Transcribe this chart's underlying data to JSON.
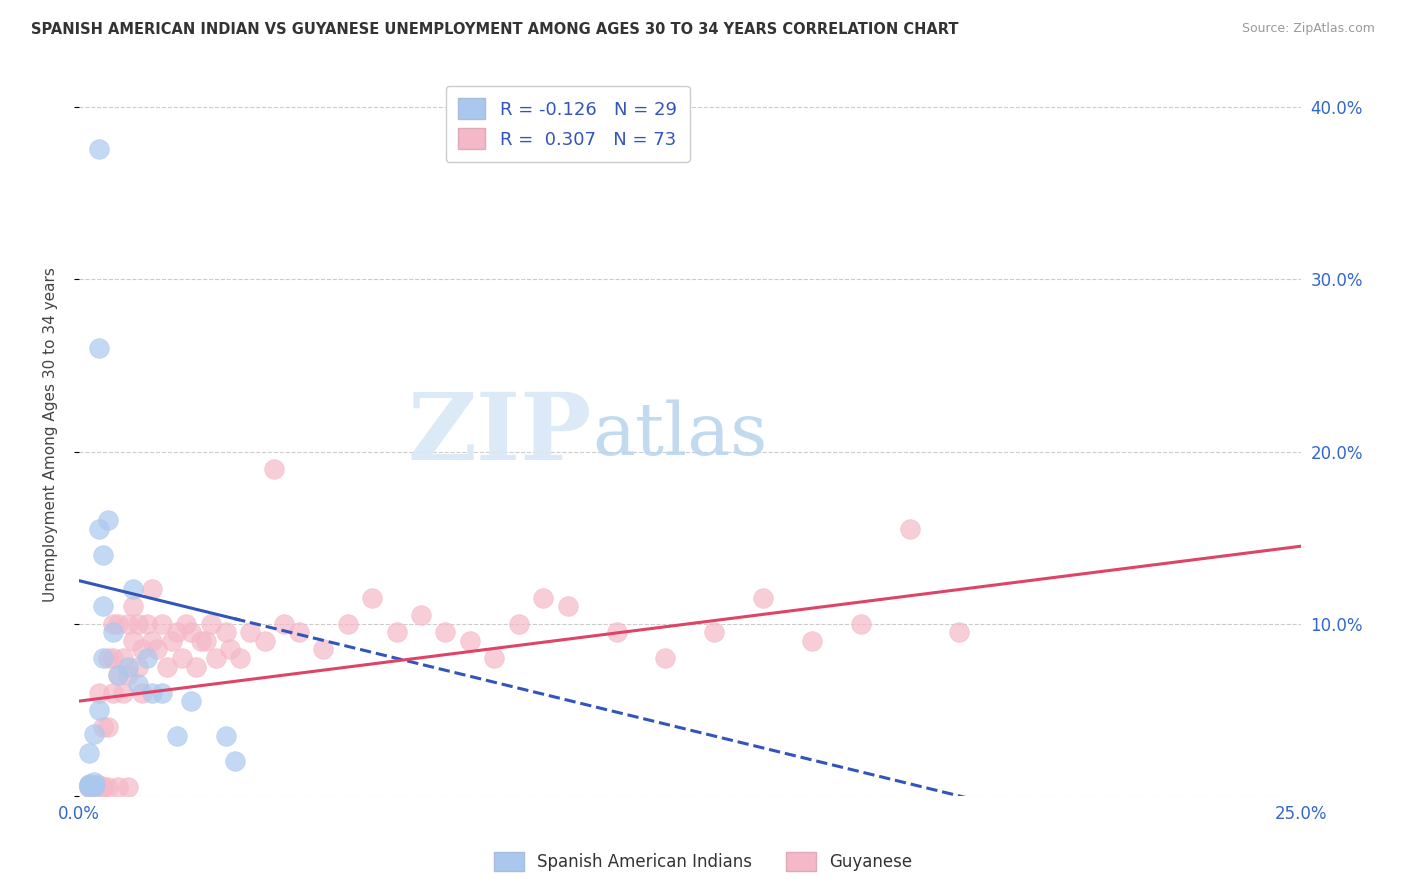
{
  "title": "SPANISH AMERICAN INDIAN VS GUYANESE UNEMPLOYMENT AMONG AGES 30 TO 34 YEARS CORRELATION CHART",
  "source": "Source: ZipAtlas.com",
  "ylabel": "Unemployment Among Ages 30 to 34 years",
  "xlim": [
    0.0,
    0.25
  ],
  "ylim": [
    0.0,
    0.42
  ],
  "xticks": [
    0.0,
    0.05,
    0.1,
    0.15,
    0.2,
    0.25
  ],
  "xtick_labels": [
    "0.0%",
    "",
    "",
    "",
    "",
    "25.0%"
  ],
  "yticks": [
    0.0,
    0.1,
    0.2,
    0.3,
    0.4
  ],
  "ytick_labels_right": [
    "",
    "10.0%",
    "20.0%",
    "30.0%",
    "40.0%"
  ],
  "background_color": "#ffffff",
  "grid_color": "#cccccc",
  "blue_color": "#aac8ee",
  "pink_color": "#f5b8c8",
  "blue_line_color": "#3355bb",
  "pink_line_color": "#dd4466",
  "R_blue": -0.126,
  "N_blue": 29,
  "R_pink": 0.307,
  "N_pink": 73,
  "legend_label_blue": "Spanish American Indians",
  "legend_label_pink": "Guyanese",
  "blue_scatter_x": [
    0.002,
    0.002,
    0.002,
    0.003,
    0.003,
    0.003,
    0.003,
    0.003,
    0.004,
    0.004,
    0.004,
    0.004,
    0.005,
    0.005,
    0.005,
    0.006,
    0.007,
    0.008,
    0.01,
    0.011,
    0.012,
    0.014,
    0.015,
    0.017,
    0.02,
    0.023,
    0.03,
    0.032,
    0.002
  ],
  "blue_scatter_y": [
    0.005,
    0.006,
    0.007,
    0.005,
    0.006,
    0.008,
    0.036,
    0.006,
    0.376,
    0.26,
    0.155,
    0.05,
    0.14,
    0.11,
    0.08,
    0.16,
    0.095,
    0.07,
    0.075,
    0.12,
    0.065,
    0.08,
    0.06,
    0.06,
    0.035,
    0.055,
    0.035,
    0.02,
    0.025
  ],
  "pink_scatter_x": [
    0.002,
    0.002,
    0.002,
    0.003,
    0.003,
    0.004,
    0.004,
    0.005,
    0.005,
    0.005,
    0.006,
    0.006,
    0.006,
    0.007,
    0.007,
    0.007,
    0.008,
    0.008,
    0.008,
    0.009,
    0.009,
    0.01,
    0.01,
    0.01,
    0.011,
    0.011,
    0.012,
    0.012,
    0.013,
    0.013,
    0.014,
    0.015,
    0.015,
    0.016,
    0.017,
    0.018,
    0.019,
    0.02,
    0.021,
    0.022,
    0.023,
    0.024,
    0.025,
    0.026,
    0.027,
    0.028,
    0.03,
    0.031,
    0.033,
    0.035,
    0.038,
    0.04,
    0.042,
    0.045,
    0.05,
    0.055,
    0.06,
    0.065,
    0.07,
    0.075,
    0.08,
    0.085,
    0.09,
    0.095,
    0.1,
    0.11,
    0.12,
    0.13,
    0.14,
    0.15,
    0.16,
    0.17,
    0.18
  ],
  "pink_scatter_y": [
    0.005,
    0.006,
    0.005,
    0.006,
    0.005,
    0.006,
    0.06,
    0.005,
    0.005,
    0.04,
    0.08,
    0.04,
    0.005,
    0.1,
    0.06,
    0.08,
    0.07,
    0.005,
    0.1,
    0.06,
    0.08,
    0.005,
    0.07,
    0.1,
    0.09,
    0.11,
    0.075,
    0.1,
    0.085,
    0.06,
    0.1,
    0.09,
    0.12,
    0.085,
    0.1,
    0.075,
    0.09,
    0.095,
    0.08,
    0.1,
    0.095,
    0.075,
    0.09,
    0.09,
    0.1,
    0.08,
    0.095,
    0.085,
    0.08,
    0.095,
    0.09,
    0.19,
    0.1,
    0.095,
    0.085,
    0.1,
    0.115,
    0.095,
    0.105,
    0.095,
    0.09,
    0.08,
    0.1,
    0.115,
    0.11,
    0.095,
    0.08,
    0.095,
    0.115,
    0.09,
    0.1,
    0.155,
    0.095
  ],
  "blue_line_start_y": 0.125,
  "blue_line_end_y": 0.0,
  "blue_line_end_x": 0.18,
  "pink_line_start_y": 0.055,
  "pink_line_end_y": 0.145,
  "tick_color": "#3366cc"
}
